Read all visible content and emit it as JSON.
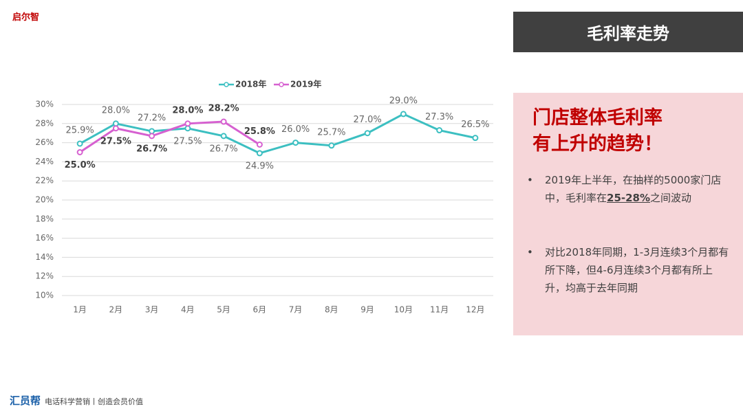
{
  "logo": "启尔智",
  "chart_data": {
    "type": "line",
    "categories": [
      "1月",
      "2月",
      "3月",
      "4月",
      "5月",
      "6月",
      "7月",
      "8月",
      "9月",
      "10月",
      "11月",
      "12月"
    ],
    "series": [
      {
        "name": "2018年",
        "color": "#3cbfc1",
        "values": [
          25.9,
          28.0,
          27.2,
          27.5,
          26.7,
          24.9,
          26.0,
          25.7,
          27.0,
          29.0,
          27.3,
          26.5
        ],
        "value_labels": [
          "25.9%",
          "28.0%",
          "27.2%",
          "27.5%",
          "26.7%",
          "24.9%",
          "26.0%",
          "25.7%",
          "27.0%",
          "29.0%",
          "27.3%",
          "26.5%"
        ]
      },
      {
        "name": "2019年",
        "color": "#d660d0",
        "values": [
          25.0,
          27.5,
          26.7,
          28.0,
          28.2,
          25.8,
          null,
          null,
          null,
          null,
          null,
          null
        ],
        "value_labels": [
          "25.0%",
          "27.5%",
          "26.7%",
          "28.0%",
          "28.2%",
          "25.8%",
          null,
          null,
          null,
          null,
          null,
          null
        ]
      }
    ],
    "ylim": [
      10,
      30
    ],
    "yticks": [
      {
        "value": 10,
        "label": "10%"
      },
      {
        "value": 12,
        "label": "12%"
      },
      {
        "value": 14,
        "label": "14%"
      },
      {
        "value": 16,
        "label": "16%"
      },
      {
        "value": 18,
        "label": "18%"
      },
      {
        "value": 20,
        "label": "20%"
      },
      {
        "value": 22,
        "label": "22%"
      },
      {
        "value": 24,
        "label": "24%"
      },
      {
        "value": 26,
        "label": "26%"
      },
      {
        "value": 28,
        "label": "28%"
      },
      {
        "value": 30,
        "label": "30%"
      }
    ],
    "grid": true,
    "legend": "top"
  },
  "panel": {
    "header": "毛利率走势",
    "headline": [
      "门店整体毛利率",
      "有上升的趋势！"
    ],
    "bullets": [
      {
        "marker": "•",
        "before": "2019年上半年，在抽样的5000家门店中，毛利率在",
        "highlight": "25-28%",
        "after": "之间波动"
      },
      {
        "marker": "•",
        "text": "对比2018年同期，1-3月连续3个月都有所下降，但4-6月连续3个月都有所上升，均高于去年同期"
      }
    ]
  },
  "footer": {
    "brand": "汇员帮",
    "slogan": "电话科学营销丨创造会员价值"
  }
}
